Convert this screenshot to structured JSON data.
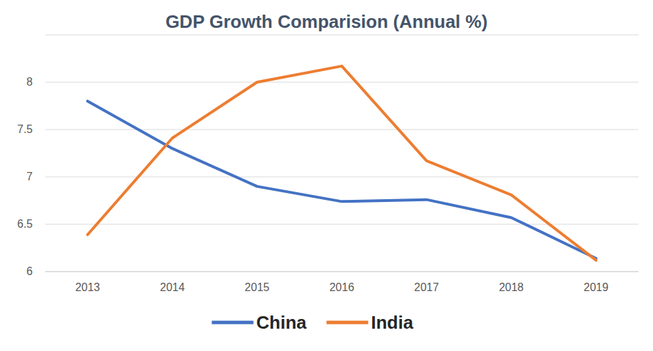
{
  "chart_data": {
    "type": "line",
    "title": "GDP Growth Comparision (Annual %)",
    "categories": [
      "2013",
      "2014",
      "2015",
      "2016",
      "2017",
      "2018",
      "2019"
    ],
    "series": [
      {
        "name": "China",
        "color": "#4472c4",
        "values": [
          7.8,
          7.3,
          6.9,
          6.74,
          6.76,
          6.57,
          6.14
        ]
      },
      {
        "name": "India",
        "color": "#ed7d31",
        "values": [
          6.39,
          7.41,
          8.0,
          8.17,
          7.17,
          6.81,
          6.12
        ]
      }
    ],
    "ylim": [
      6,
      8.5
    ],
    "yticks": [
      6,
      6.5,
      7,
      7.5,
      8
    ],
    "grid": true,
    "legend": "bottom"
  }
}
